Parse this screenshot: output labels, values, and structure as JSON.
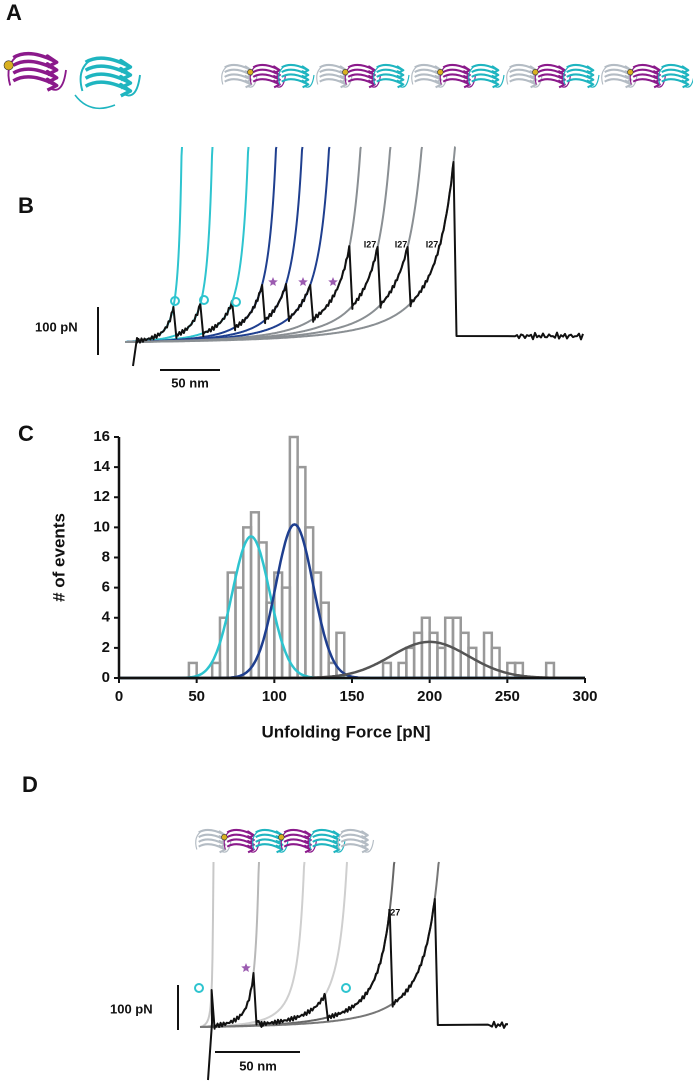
{
  "panels": {
    "a": "A",
    "b": "B",
    "c": "C",
    "d": "D"
  },
  "trace_b": {
    "force_scale": "100 pN",
    "length_scale": "50 nm",
    "peak_labels": [
      "I27",
      "I27",
      "I27"
    ]
  },
  "trace_d": {
    "force_scale": "100 pN",
    "length_scale": "50 nm",
    "peak_labels": [
      "I27"
    ]
  },
  "chart_data": {
    "type": "histogram",
    "x_label": "Unfolding Force [pN]",
    "y_label": "# of events",
    "bins": [
      45,
      50,
      55,
      60,
      65,
      70,
      75,
      80,
      85,
      90,
      95,
      100,
      105,
      110,
      115,
      120,
      125,
      130,
      135,
      140,
      145,
      150,
      155,
      160,
      165,
      170,
      175,
      180,
      185,
      190,
      195,
      200,
      205,
      210,
      215,
      220,
      225,
      230,
      235,
      240,
      245,
      250,
      255,
      260,
      265,
      270,
      275,
      280
    ],
    "values": [
      1,
      0,
      0,
      1,
      4,
      7,
      6,
      10,
      11,
      9,
      5,
      7,
      6,
      16,
      14,
      10,
      7,
      5,
      1,
      3,
      0,
      0,
      0,
      0,
      0,
      1,
      0,
      1,
      2,
      3,
      4,
      3,
      2,
      4,
      4,
      3,
      2,
      0,
      3,
      2,
      0,
      1,
      1,
      0,
      0,
      0,
      1
    ],
    "color": "#999999",
    "fits": [
      {
        "color": "#2ec4cf",
        "mean": 85,
        "sd": 12,
        "amplitude": 9.4
      },
      {
        "color": "#1f3f8f",
        "mean": 113,
        "sd": 12,
        "amplitude": 10.2
      },
      {
        "color": "#555555",
        "mean": 200,
        "sd": 25,
        "amplitude": 2.4
      }
    ],
    "xlim": [
      0,
      300
    ],
    "xticks": [
      0,
      50,
      100,
      150,
      200,
      250,
      300
    ],
    "ylim": [
      0,
      16
    ],
    "yticks": [
      0,
      2,
      4,
      6,
      8,
      10,
      12,
      14,
      16
    ]
  }
}
